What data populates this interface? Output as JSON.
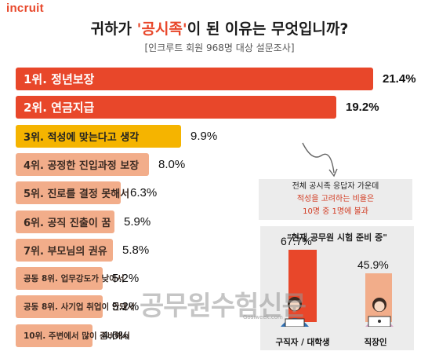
{
  "brand": {
    "logo_text": "incruit",
    "accent": "#e8472a"
  },
  "title": {
    "prefix": "귀하가 ",
    "highlight": "'공시족'",
    "suffix": "이 된 이유는 무엇입니까?"
  },
  "subtitle": "[인크루트 회원 968명 대상 설문조사]",
  "chart_data": {
    "type": "bar",
    "orientation": "horizontal",
    "title": "귀하가 '공시족'이 된 이유는 무엇입니까?",
    "subtitle": "[인크루트 회원 968명 대상 설문조사]",
    "categories": [
      "1위. 정년보장",
      "2위. 연금지급",
      "3위. 적성에 맞는다고 생각",
      "4위. 공정한 진입과정 보장",
      "5위. 진로를 결정 못해서",
      "6위. 공직 진출이 꿈",
      "7위. 부모님의 권유",
      "공동 8위. 업무강도가 낮아서",
      "공동 8위. 사기업 취업이 안돼서",
      "10위. 주변에서 많이 준비해서"
    ],
    "values": [
      21.4,
      19.2,
      9.9,
      8.0,
      6.3,
      5.9,
      5.8,
      5.2,
      5.2,
      4.6
    ],
    "value_labels": [
      "21.4%",
      "19.2%",
      "9.9%",
      "8.0%",
      "6.3%",
      "5.9%",
      "5.8%",
      "5.2%",
      "5.2%",
      "4.6%"
    ],
    "colors": [
      "#e8472a",
      "#e8472a",
      "#f5b400",
      "#f2ad8a",
      "#f2ad8a",
      "#f2ad8a",
      "#f2ad8a",
      "#f2ad8a",
      "#f2ad8a",
      "#f2ad8a"
    ],
    "xlim": [
      0,
      21.4
    ],
    "annotation": {
      "line1": "전체 공시족 응답자 가운데",
      "line2": "적성을 고려하는 비율은",
      "line3": "10명 중 1명에 불과"
    },
    "inset": {
      "type": "bar",
      "title": "\"현재 공무원 시험 준비 중\"",
      "categories": [
        "구직자 / 대학생",
        "직장인"
      ],
      "values": [
        67.7,
        45.9
      ],
      "value_labels": [
        "67.7%",
        "45.9%"
      ],
      "colors": [
        "#e8472a",
        "#f2ad8a"
      ],
      "ylim": [
        0,
        67.7
      ]
    }
  },
  "watermark": {
    "text": "공무원수험신문",
    "small": "Gosiweek.com"
  }
}
